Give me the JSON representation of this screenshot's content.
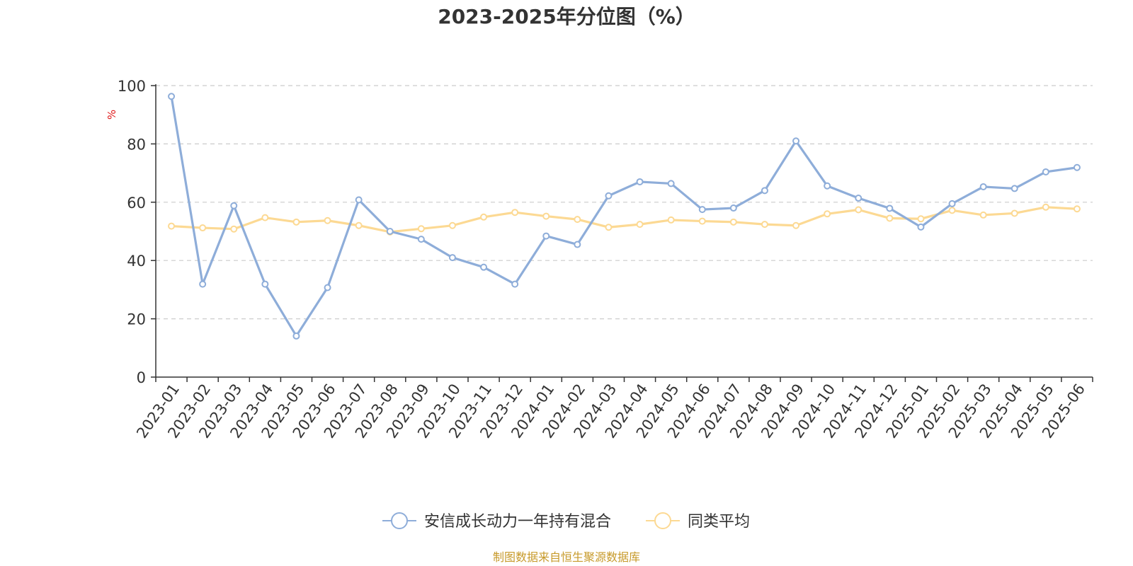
{
  "chart_data": {
    "type": "line",
    "title": "2023-2025年分位图（%）",
    "ylabel": "%",
    "xlabel": "",
    "ylim": [
      0,
      100
    ],
    "yticks": [
      0,
      20,
      40,
      60,
      80,
      100
    ],
    "grid": true,
    "legend_position": "bottom",
    "categories": [
      "2023-01",
      "2023-02",
      "2023-03",
      "2023-04",
      "2023-05",
      "2023-06",
      "2023-07",
      "2023-08",
      "2023-09",
      "2023-10",
      "2023-11",
      "2023-12",
      "2024-01",
      "2024-02",
      "2024-03",
      "2024-04",
      "2024-05",
      "2024-06",
      "2024-07",
      "2024-08",
      "2024-09",
      "2024-10",
      "2024-11",
      "2024-12",
      "2025-01",
      "2025-02",
      "2025-03",
      "2025-04",
      "2025-05",
      "2025-06"
    ],
    "series": [
      {
        "name": "安信成长动力一年持有混合",
        "color": "#8eadd9",
        "values": [
          96.3,
          31.9,
          58.8,
          31.9,
          14.1,
          30.7,
          60.8,
          50.0,
          47.3,
          41.0,
          37.7,
          31.9,
          48.4,
          45.5,
          62.2,
          67.0,
          66.4,
          57.5,
          58.0,
          64.0,
          81.0,
          65.6,
          61.4,
          57.9,
          51.5,
          59.5,
          65.3,
          64.7,
          70.4,
          71.9
        ]
      },
      {
        "name": "同类平均",
        "color": "#fcd993",
        "values": [
          51.8,
          51.2,
          50.8,
          54.7,
          53.2,
          53.7,
          52.0,
          49.8,
          50.9,
          52.0,
          54.9,
          56.5,
          55.2,
          54.1,
          51.4,
          52.4,
          53.9,
          53.5,
          53.2,
          52.4,
          52.0,
          56.0,
          57.4,
          54.5,
          54.3,
          57.2,
          55.6,
          56.2,
          58.3,
          57.7
        ]
      }
    ],
    "source": "制图数据来自恒生聚源数据库"
  },
  "colors": {
    "unit_label": "#e0191a",
    "source_text": "#c79a2a",
    "axis": "#333333",
    "grid": "#cccccc"
  }
}
